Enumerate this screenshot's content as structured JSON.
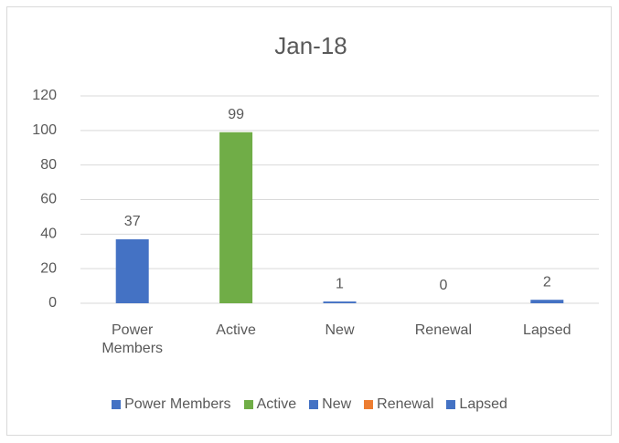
{
  "chart_data": {
    "type": "bar",
    "title": "Jan-18",
    "categories": [
      "Power Members",
      "Active",
      "New",
      "Renewal",
      "Lapsed"
    ],
    "values": [
      37,
      99,
      1,
      0,
      2
    ],
    "colors": [
      "#4472c4",
      "#70ad47",
      "#4472c4",
      "#ed7d31",
      "#4472c4"
    ],
    "ylim": [
      0,
      120
    ],
    "yticks": [
      0,
      20,
      40,
      60,
      80,
      100,
      120
    ],
    "grid": true,
    "legend": "bottom"
  }
}
